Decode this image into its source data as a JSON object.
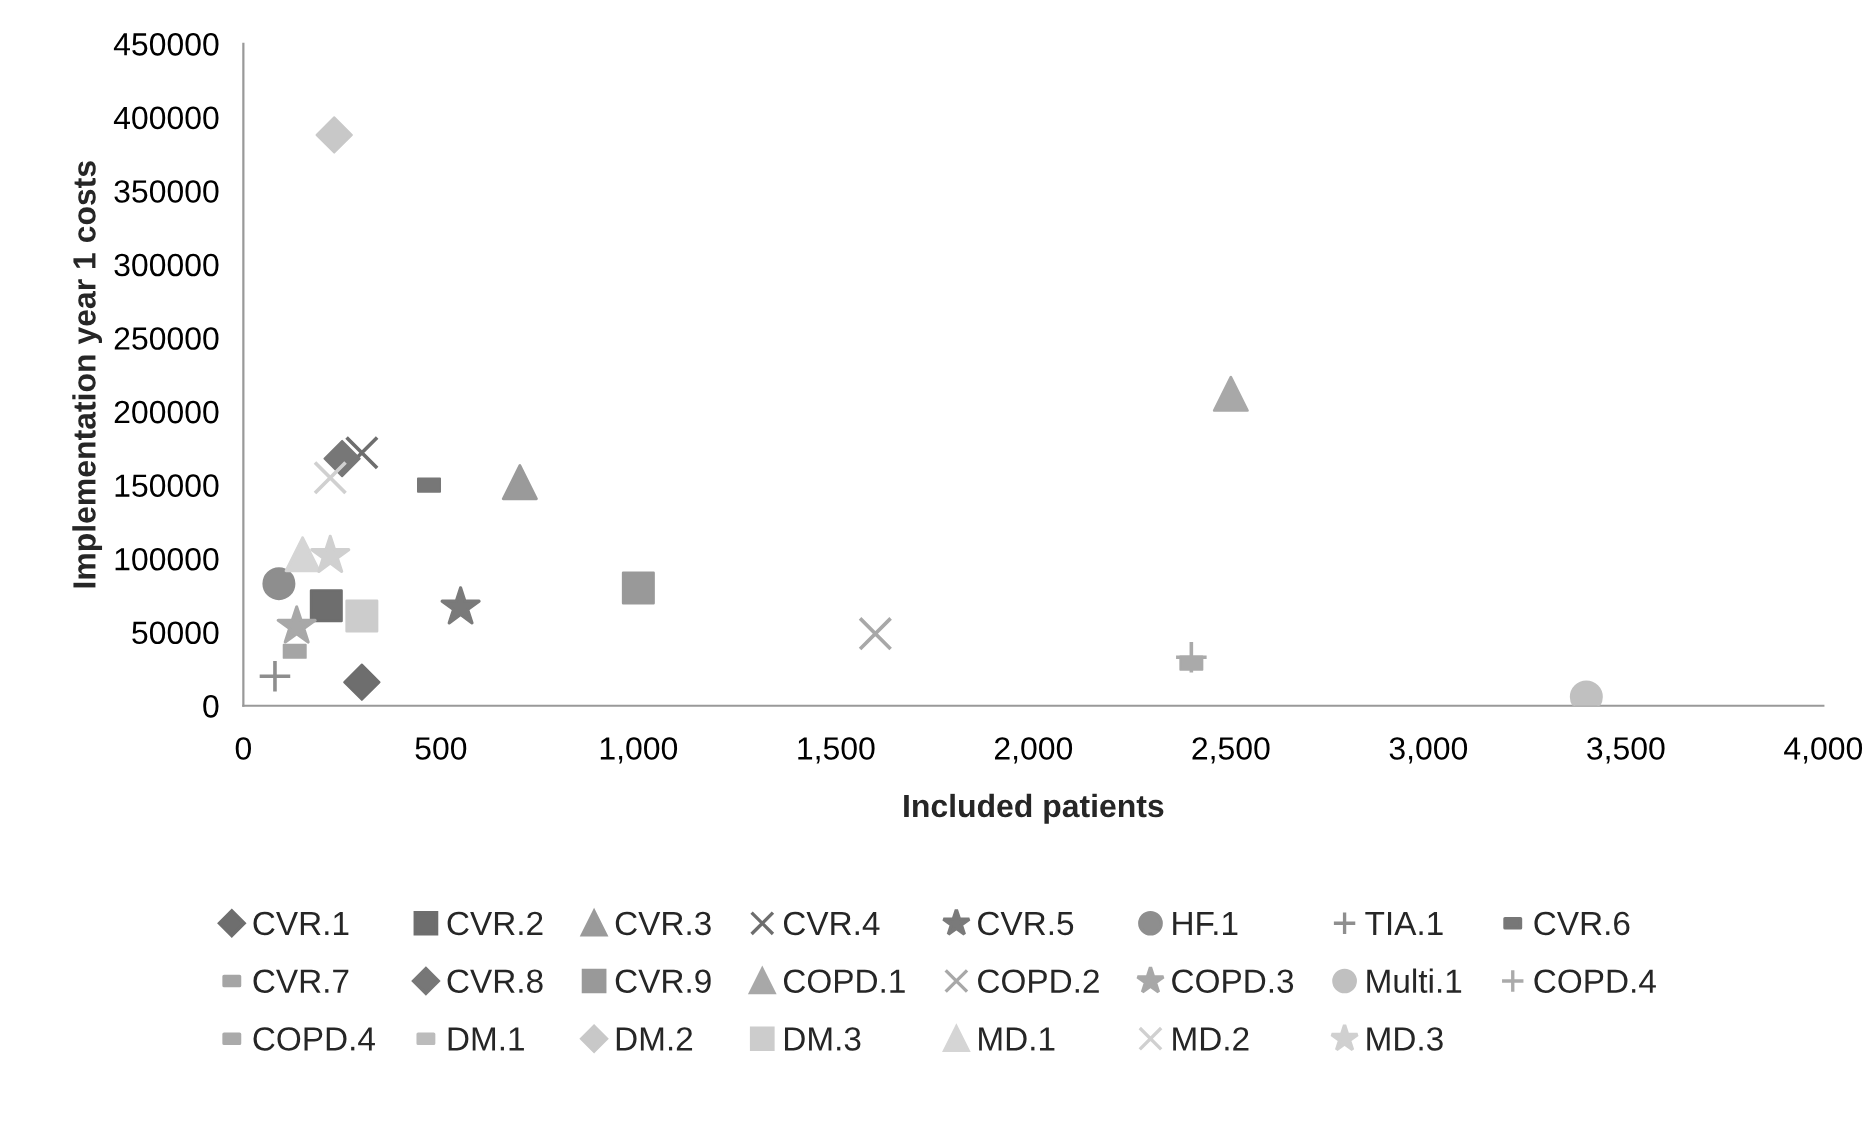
{
  "chart_data": {
    "type": "scatter",
    "xlabel": "Included patients",
    "ylabel": "Implementation year 1 costs",
    "xlim": [
      0,
      4000
    ],
    "xticks": [
      0,
      500,
      {
        "value": 1000,
        "label": "1,000"
      },
      {
        "value": 1500,
        "label": "1,500"
      },
      {
        "value": 2000,
        "label": "2,000"
      },
      {
        "value": 2500,
        "label": "2,500"
      },
      {
        "value": 3000,
        "label": "3,000"
      },
      {
        "value": 3500,
        "label": "3,500"
      },
      {
        "value": 4000,
        "label": "4,000"
      }
    ],
    "ylim": [
      0,
      450000
    ],
    "yticks": [
      0,
      50000,
      100000,
      150000,
      200000,
      250000,
      300000,
      350000,
      400000,
      450000
    ],
    "grid": false,
    "legend": "bottom",
    "series": [
      {
        "name": "CVR.1",
        "color": "#6e6e6e",
        "marker": "diamond",
        "x": [
          300
        ],
        "values": [
          16000
        ]
      },
      {
        "name": "CVR.2",
        "color": "#6e6e6e",
        "marker": "square",
        "x": [
          210
        ],
        "values": [
          68000
        ]
      },
      {
        "name": "CVR.3",
        "color": "#9a9a9a",
        "marker": "triangle",
        "x": [
          700
        ],
        "values": [
          152000
        ]
      },
      {
        "name": "CVR.4",
        "color": "#6e6e6e",
        "marker": "cross",
        "x": [
          300
        ],
        "values": [
          172000
        ]
      },
      {
        "name": "CVR.5",
        "color": "#7a7a7a",
        "marker": "star",
        "x": [
          550
        ],
        "values": [
          67000
        ]
      },
      {
        "name": "HF.1",
        "color": "#8e8e8e",
        "marker": "circle",
        "x": [
          90
        ],
        "values": [
          83000
        ]
      },
      {
        "name": "TIA.1",
        "color": "#8e8e8e",
        "marker": "plus",
        "x": [
          80
        ],
        "values": [
          20000
        ]
      },
      {
        "name": "CVR.6",
        "color": "#777777",
        "x": [
          470
        ],
        "values": [
          150000
        ]
      },
      {
        "name": "CVR.7",
        "color": "#a5a5a5",
        "x": [
          130
        ],
        "values": [
          37000
        ]
      },
      {
        "name": "CVR.8",
        "color": "#777777",
        "marker": "diamond",
        "x": [
          250
        ],
        "values": [
          168000
        ]
      },
      {
        "name": "CVR.9",
        "color": "#999999",
        "marker": "square",
        "x": [
          1000
        ],
        "values": [
          80000
        ]
      },
      {
        "name": "COPD.1",
        "color": "#a8a8a8",
        "marker": "triangle",
        "x": [
          2500
        ],
        "values": [
          212000
        ]
      },
      {
        "name": "COPD.2",
        "color": "#a8a8a8",
        "marker": "cross",
        "x": [
          1600
        ],
        "values": [
          49000
        ]
      },
      {
        "name": "COPD.3",
        "color": "#a8a8a8",
        "marker": "star",
        "x": [
          135
        ],
        "values": [
          54000
        ]
      },
      {
        "name": "Multi.1",
        "color": "#c0c0c0",
        "marker": "circle",
        "x": [
          3400
        ],
        "values": [
          6000
        ]
      },
      {
        "name": "COPD.4",
        "color": "#aaaaaa",
        "marker": "plus",
        "x": [
          2400
        ],
        "values": [
          33000
        ]
      },
      {
        "name": "COPD.4",
        "color": "#aaaaaa",
        "x": [
          2400
        ],
        "values": [
          29000
        ]
      },
      {
        "name": "DM.1",
        "color": "#bcbcbc"
      },
      {
        "name": "DM.2",
        "color": "#c8c8c8",
        "marker": "diamond",
        "x": [
          230
        ],
        "values": [
          388000
        ]
      },
      {
        "name": "DM.3",
        "color": "#cccccc",
        "marker": "square",
        "x": [
          300
        ],
        "values": [
          61000
        ]
      },
      {
        "name": "MD.1",
        "color": "#d5d5d5",
        "marker": "triangle",
        "x": [
          150
        ],
        "values": [
          103000
        ]
      },
      {
        "name": "MD.2",
        "color": "#d0d0d0",
        "marker": "cross",
        "x": [
          220
        ],
        "values": [
          155000
        ]
      },
      {
        "name": "MD.3",
        "color": "#d0d0d0",
        "marker": "star",
        "x": [
          220
        ],
        "values": [
          102000
        ]
      }
    ]
  }
}
